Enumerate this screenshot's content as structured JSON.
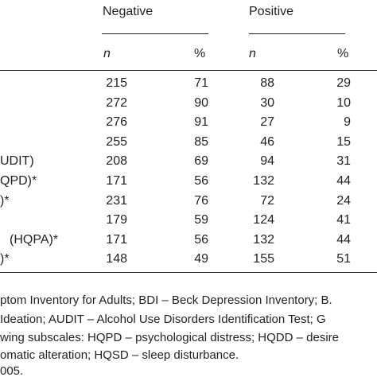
{
  "header": {
    "groups": [
      "Negative",
      "Positive"
    ],
    "subheaders": [
      "n",
      "%",
      "n",
      "%"
    ]
  },
  "table": {
    "rows": [
      [
        null,
        215,
        71,
        88,
        29
      ],
      [
        null,
        272,
        90,
        30,
        10
      ],
      [
        null,
        276,
        91,
        27,
        9
      ],
      [
        null,
        255,
        85,
        46,
        15
      ],
      [
        "UDIT)",
        208,
        69,
        94,
        31
      ],
      [
        "QPD)*",
        171,
        56,
        132,
        44
      ],
      [
        ")*",
        231,
        76,
        72,
        24
      ],
      [
        null,
        179,
        59,
        124,
        41
      ],
      [
        "(HQPA)*",
        171,
        56,
        132,
        44
      ],
      [
        ")*",
        148,
        49,
        155,
        51
      ]
    ]
  },
  "footnotes": [
    "ptom Inventory for Adults; BDI – Beck Depression Inventory; B.",
    "Ideation; AUDIT – Alcohol Use Disorders Identification Test; G",
    "wing subscales: HQPD – psychological distress; HQDD – desire",
    "omatic alteration; HQSD – sleep disturbance.",
    "005."
  ]
}
